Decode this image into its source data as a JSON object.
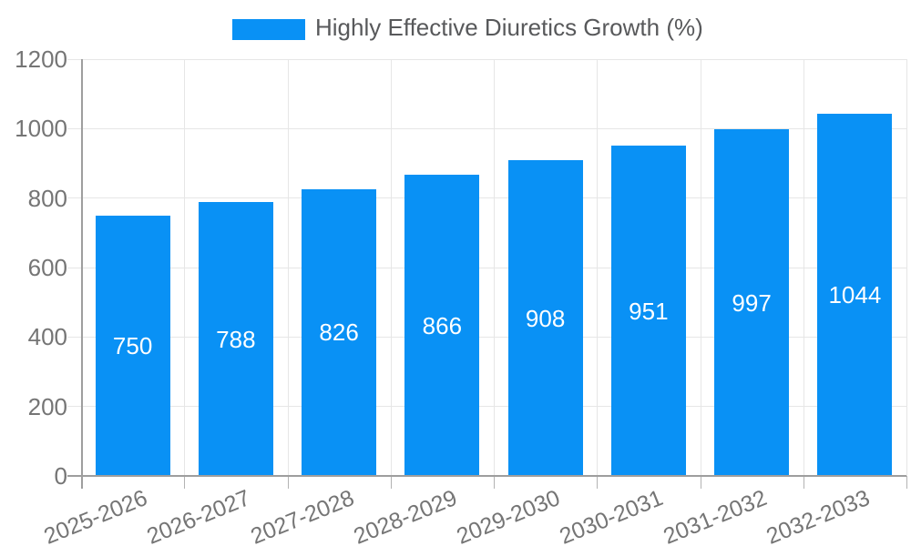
{
  "chart_data": {
    "type": "bar",
    "title": "",
    "legend": "Highly Effective Diuretics Growth (%)",
    "legend_position": "top-center",
    "categories": [
      "2025-2026",
      "2026-2027",
      "2027-2028",
      "2028-2029",
      "2029-2030",
      "2030-2031",
      "2031-2032",
      "2032-2033"
    ],
    "values": [
      750,
      788,
      826,
      866,
      908,
      951,
      997,
      1044
    ],
    "yticks": [
      0,
      200,
      400,
      600,
      800,
      1000,
      1200
    ],
    "ylim": [
      0,
      1200
    ],
    "xlabel": "",
    "ylabel": "",
    "grid": true,
    "colors": {
      "bar": "#0991f5",
      "grid": "#e6e6e6",
      "axis": "#9e9e9e",
      "tick": "#b3b3b3",
      "tick_text": "#757575",
      "legend_text": "#58595b",
      "bar_label_text": "#ffffff",
      "background": "#ffffff"
    }
  }
}
